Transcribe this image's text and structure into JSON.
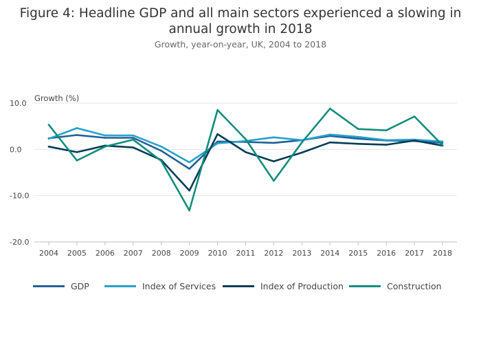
{
  "chart_data": {
    "type": "line",
    "title": "Figure 4: Headline GDP and all main sectors experienced a slowing in annual growth in 2018",
    "subtitle": "Growth, year-on-year, UK, 2004 to 2018",
    "ylabel": "Growth (%)",
    "xlabel": "",
    "ylim": [
      -20,
      10
    ],
    "yticks": [
      10,
      0,
      -10,
      -20
    ],
    "ytick_labels": [
      "10.0",
      "0.0",
      "-10.0",
      "-20.0"
    ],
    "categories": [
      "2004",
      "2005",
      "2006",
      "2007",
      "2008",
      "2009",
      "2010",
      "2011",
      "2012",
      "2013",
      "2014",
      "2015",
      "2016",
      "2017",
      "2018"
    ],
    "grid": true,
    "legend_position": "bottom",
    "series": [
      {
        "name": "GDP",
        "color": "#206095",
        "values": [
          2.4,
          3.1,
          2.5,
          2.5,
          -0.3,
          -4.2,
          1.7,
          1.6,
          1.4,
          2.0,
          2.9,
          2.3,
          1.9,
          1.8,
          1.4
        ]
      },
      {
        "name": "Index of Services",
        "color": "#27A0CC",
        "values": [
          2.3,
          4.6,
          3.0,
          3.0,
          0.6,
          -2.8,
          1.3,
          1.8,
          2.6,
          2.0,
          3.2,
          2.7,
          2.0,
          2.1,
          1.7
        ]
      },
      {
        "name": "Index of Production",
        "color": "#003C57",
        "values": [
          0.6,
          -0.6,
          0.8,
          0.4,
          -2.3,
          -8.9,
          3.3,
          -0.6,
          -2.6,
          -0.7,
          1.5,
          1.2,
          1.0,
          1.9,
          0.8
        ]
      },
      {
        "name": "Construction",
        "color": "#118C7B",
        "values": [
          5.3,
          -2.4,
          0.6,
          2.1,
          -2.5,
          -13.2,
          8.5,
          2.2,
          -6.8,
          1.5,
          8.8,
          4.4,
          4.1,
          7.1,
          0.9
        ]
      }
    ]
  }
}
